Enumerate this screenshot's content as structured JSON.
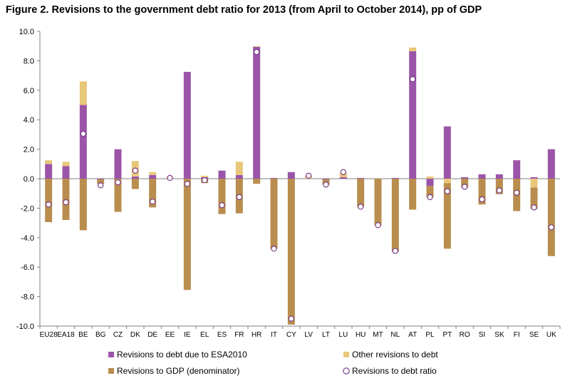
{
  "title": "Figure 2. Revisions to the government debt ratio for 2013 (from April to October 2014), pp of GDP",
  "colors": {
    "esa": "#9b55a8",
    "other": "#e8c77a",
    "gdp": "#b88d4e",
    "ratio_fill": "#ffffff",
    "ratio_stroke": "#7a3d8a",
    "axis": "#808080"
  },
  "chart_data": {
    "type": "bar",
    "title": "Figure 2. Revisions to the government debt ratio for 2013 (from April to October 2014), pp of GDP",
    "xlabel": "",
    "ylabel": "",
    "ylim": [
      -10,
      10
    ],
    "yticks": [
      "10.0",
      "8.0",
      "6.0",
      "4.0",
      "2.0",
      "0.0",
      "-2.0",
      "-4.0",
      "-6.0",
      "-8.0",
      "-10.0"
    ],
    "grid": false,
    "legend_position": "bottom",
    "categories": [
      "EU28",
      "EA18",
      "BE",
      "BG",
      "CZ",
      "DK",
      "DE",
      "EE",
      "IE",
      "EL",
      "ES",
      "FR",
      "HR",
      "IT",
      "CY",
      "LV",
      "LT",
      "LU",
      "HU",
      "MT",
      "NL",
      "AT",
      "PL",
      "PT",
      "RO",
      "SI",
      "SK",
      "FI",
      "SE",
      "UK"
    ],
    "series": [
      {
        "name": "Revisions to debt due to ESA2010",
        "kind": "bar",
        "colorKey": "esa",
        "values": [
          1.0,
          0.85,
          5.0,
          -0.05,
          2.0,
          0.15,
          0.25,
          0.0,
          7.25,
          0.1,
          0.55,
          0.25,
          8.95,
          0.05,
          0.45,
          0.0,
          -0.05,
          0.1,
          0.05,
          0.0,
          0.05,
          8.65,
          -0.5,
          3.55,
          0.1,
          0.3,
          0.3,
          1.25,
          0.1,
          2.0
        ]
      },
      {
        "name": "Other revisions to debt",
        "kind": "bar",
        "colorKey": "other",
        "values": [
          0.25,
          0.3,
          1.6,
          0.0,
          0.0,
          1.05,
          0.2,
          0.1,
          0.0,
          0.1,
          0.0,
          0.9,
          0.05,
          0.0,
          0.0,
          0.2,
          0.0,
          0.3,
          0.0,
          0.0,
          0.0,
          0.25,
          0.15,
          -0.3,
          0.0,
          0.0,
          0.0,
          0.0,
          -0.6,
          0.0
        ]
      },
      {
        "name": "Revisions to GDP (denominator)",
        "kind": "bar",
        "colorKey": "gdp",
        "values": [
          -2.95,
          -2.8,
          -3.5,
          -0.3,
          -2.25,
          -0.7,
          -1.95,
          0.0,
          -7.55,
          -0.3,
          -2.4,
          -2.35,
          -0.35,
          -4.75,
          -9.9,
          0.0,
          -0.35,
          0.0,
          -1.9,
          -3.15,
          -4.95,
          -2.1,
          -0.75,
          -4.45,
          -0.6,
          -1.75,
          -1.05,
          -2.2,
          -1.45,
          -5.25
        ]
      },
      {
        "name": "Revisions to debt ratio",
        "kind": "marker",
        "colorKey": "ratio_stroke",
        "values": [
          -1.75,
          -1.6,
          3.05,
          -0.45,
          -0.25,
          0.55,
          -1.55,
          0.05,
          -0.35,
          -0.1,
          -1.8,
          -1.25,
          8.6,
          -4.75,
          -9.5,
          0.2,
          -0.4,
          0.45,
          -1.9,
          -3.15,
          -4.9,
          6.75,
          -1.25,
          -0.85,
          -0.55,
          -1.4,
          -0.8,
          -0.95,
          -1.95,
          -3.3
        ]
      }
    ]
  }
}
